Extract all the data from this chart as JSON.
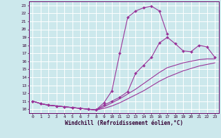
{
  "xlabel": "Windchill (Refroidissement éolien,°C)",
  "bg_color": "#cce8ec",
  "grid_color": "#ffffff",
  "line_color": "#993399",
  "xlim": [
    -0.5,
    23.5
  ],
  "ylim": [
    9.5,
    23.5
  ],
  "xticks": [
    0,
    1,
    2,
    3,
    4,
    5,
    6,
    7,
    8,
    9,
    10,
    11,
    12,
    13,
    14,
    15,
    16,
    17,
    18,
    19,
    20,
    21,
    22,
    23
  ],
  "yticks": [
    10,
    11,
    12,
    13,
    14,
    15,
    16,
    17,
    18,
    19,
    20,
    21,
    22,
    23
  ],
  "curve1_x": [
    0,
    1,
    2,
    3,
    4,
    5,
    6,
    7,
    8,
    9,
    10,
    11,
    12,
    13,
    14,
    15,
    16,
    17
  ],
  "curve1_y": [
    11.0,
    10.7,
    10.5,
    10.4,
    10.3,
    10.2,
    10.1,
    10.0,
    9.9,
    10.8,
    12.3,
    17.0,
    21.5,
    22.3,
    22.7,
    22.9,
    22.3,
    19.4
  ],
  "curve2_x": [
    0,
    1,
    2,
    3,
    4,
    5,
    6,
    7,
    8,
    9,
    10,
    11,
    12,
    13,
    14,
    15,
    16,
    17,
    18,
    19,
    20,
    21,
    22,
    23
  ],
  "curve2_y": [
    11.0,
    10.7,
    10.5,
    10.4,
    10.3,
    10.2,
    10.1,
    10.0,
    9.9,
    10.5,
    11.0,
    11.5,
    12.2,
    14.5,
    15.5,
    16.5,
    18.3,
    19.0,
    18.2,
    17.3,
    17.2,
    18.0,
    17.8,
    16.5
  ],
  "curve3_x": [
    0,
    1,
    2,
    3,
    4,
    5,
    6,
    7,
    8,
    9,
    10,
    11,
    12,
    13,
    14,
    15,
    16,
    17,
    18,
    19,
    20,
    21,
    22,
    23
  ],
  "curve3_y": [
    11.0,
    10.7,
    10.5,
    10.4,
    10.3,
    10.2,
    10.1,
    10.0,
    9.9,
    10.3,
    10.8,
    11.3,
    11.9,
    12.5,
    13.2,
    13.9,
    14.6,
    15.2,
    15.5,
    15.8,
    16.0,
    16.2,
    16.3,
    16.3
  ],
  "curve4_x": [
    0,
    1,
    2,
    3,
    4,
    5,
    6,
    7,
    8,
    9,
    10,
    11,
    12,
    13,
    14,
    15,
    16,
    17,
    18,
    19,
    20,
    21,
    22,
    23
  ],
  "curve4_y": [
    11.0,
    10.7,
    10.5,
    10.4,
    10.3,
    10.2,
    10.1,
    10.0,
    9.9,
    10.1,
    10.4,
    10.8,
    11.3,
    11.8,
    12.3,
    12.9,
    13.5,
    14.0,
    14.4,
    14.8,
    15.1,
    15.4,
    15.6,
    15.8
  ],
  "tick_fontsize": 4.5,
  "xlabel_fontsize": 5.5
}
